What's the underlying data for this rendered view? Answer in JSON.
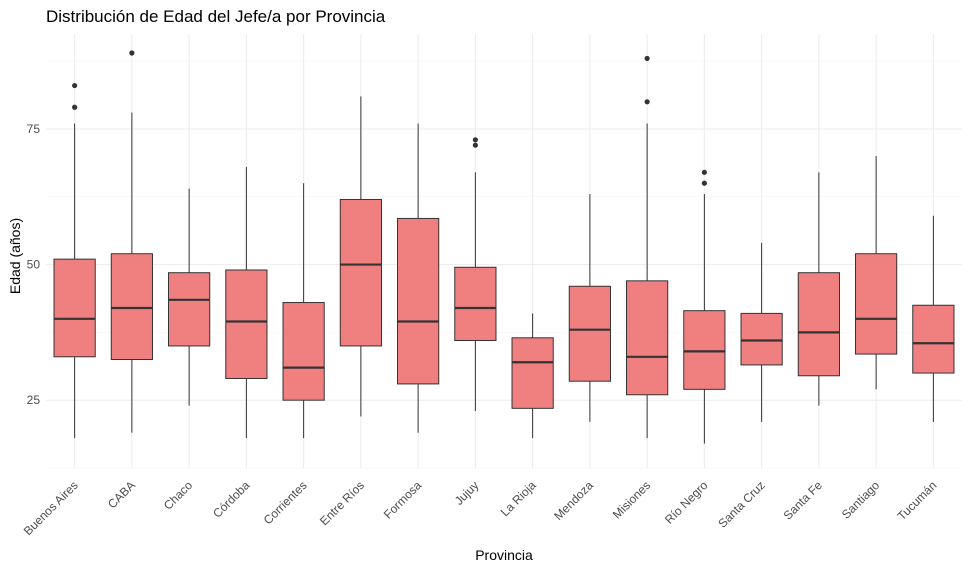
{
  "chart_data": {
    "type": "boxplot",
    "title": "Distribución de Edad del Jefe/a por Provincia",
    "xlabel": "Provincia",
    "ylabel": "Edad (años)",
    "ylim": [
      12.5,
      92.5
    ],
    "yticks": [
      25,
      50,
      75
    ],
    "grid": true,
    "fill_color": "#f08080",
    "stroke_color": "#333333",
    "categories": [
      "Buenos Aires",
      "CABA",
      "Chaco",
      "Córdoba",
      "Corrientes",
      "Entre Ríos",
      "Formosa",
      "Jujuy",
      "La Rioja",
      "Mendoza",
      "Misiones",
      "Río Negro",
      "Santa Cruz",
      "Santa Fe",
      "Santiago",
      "Tucumán"
    ],
    "boxes": [
      {
        "min": 18,
        "q1": 33,
        "median": 40,
        "q3": 51,
        "max": 76,
        "outliers": [
          79,
          83
        ]
      },
      {
        "min": 19,
        "q1": 32.5,
        "median": 42,
        "q3": 52,
        "max": 78,
        "outliers": [
          89
        ]
      },
      {
        "min": 24,
        "q1": 35,
        "median": 43.5,
        "q3": 48.5,
        "max": 64,
        "outliers": []
      },
      {
        "min": 18,
        "q1": 29,
        "median": 39.5,
        "q3": 49,
        "max": 68,
        "outliers": []
      },
      {
        "min": 18,
        "q1": 25,
        "median": 31,
        "q3": 43,
        "max": 65,
        "outliers": []
      },
      {
        "min": 22,
        "q1": 35,
        "median": 50,
        "q3": 62,
        "max": 81,
        "outliers": []
      },
      {
        "min": 19,
        "q1": 28,
        "median": 39.5,
        "q3": 58.5,
        "max": 76,
        "outliers": []
      },
      {
        "min": 23,
        "q1": 36,
        "median": 42,
        "q3": 49.5,
        "max": 67,
        "outliers": [
          72,
          73
        ]
      },
      {
        "min": 18,
        "q1": 23.5,
        "median": 32,
        "q3": 36.5,
        "max": 41,
        "outliers": []
      },
      {
        "min": 21,
        "q1": 28.5,
        "median": 38,
        "q3": 46,
        "max": 63,
        "outliers": []
      },
      {
        "min": 18,
        "q1": 26,
        "median": 33,
        "q3": 47,
        "max": 76,
        "outliers": [
          80,
          88
        ]
      },
      {
        "min": 17,
        "q1": 27,
        "median": 34,
        "q3": 41.5,
        "max": 63,
        "outliers": [
          65,
          67
        ]
      },
      {
        "min": 21,
        "q1": 31.5,
        "median": 36,
        "q3": 41,
        "max": 54,
        "outliers": []
      },
      {
        "min": 24,
        "q1": 29.5,
        "median": 37.5,
        "q3": 48.5,
        "max": 67,
        "outliers": []
      },
      {
        "min": 27,
        "q1": 33.5,
        "median": 40,
        "q3": 52,
        "max": 70,
        "outliers": []
      },
      {
        "min": 21,
        "q1": 30,
        "median": 35.5,
        "q3": 42.5,
        "max": 59,
        "outliers": []
      }
    ]
  }
}
